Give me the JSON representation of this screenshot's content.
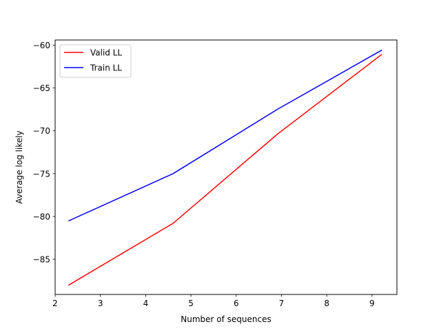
{
  "chart_data": {
    "type": "line",
    "title": "",
    "xlabel": "Number of sequences",
    "ylabel": "Average log likely",
    "xlim": [
      2.0,
      9.55
    ],
    "ylim": [
      -89.1,
      -59.4
    ],
    "xticks": [
      2,
      3,
      4,
      5,
      6,
      7,
      8,
      9
    ],
    "yticks": [
      -85,
      -80,
      -75,
      -70,
      -65,
      -60
    ],
    "grid": false,
    "legend_position": "top-left",
    "series": [
      {
        "name": "Valid LL",
        "color": "#ff0000",
        "x": [
          2.303,
          4.605,
          6.908,
          9.21
        ],
        "y": [
          -88.0,
          -80.8,
          -70.4,
          -61.1
        ]
      },
      {
        "name": "Train LL",
        "color": "#0000ff",
        "x": [
          2.303,
          4.605,
          6.908,
          9.21
        ],
        "y": [
          -80.5,
          -75.0,
          -67.5,
          -60.6
        ]
      }
    ]
  }
}
